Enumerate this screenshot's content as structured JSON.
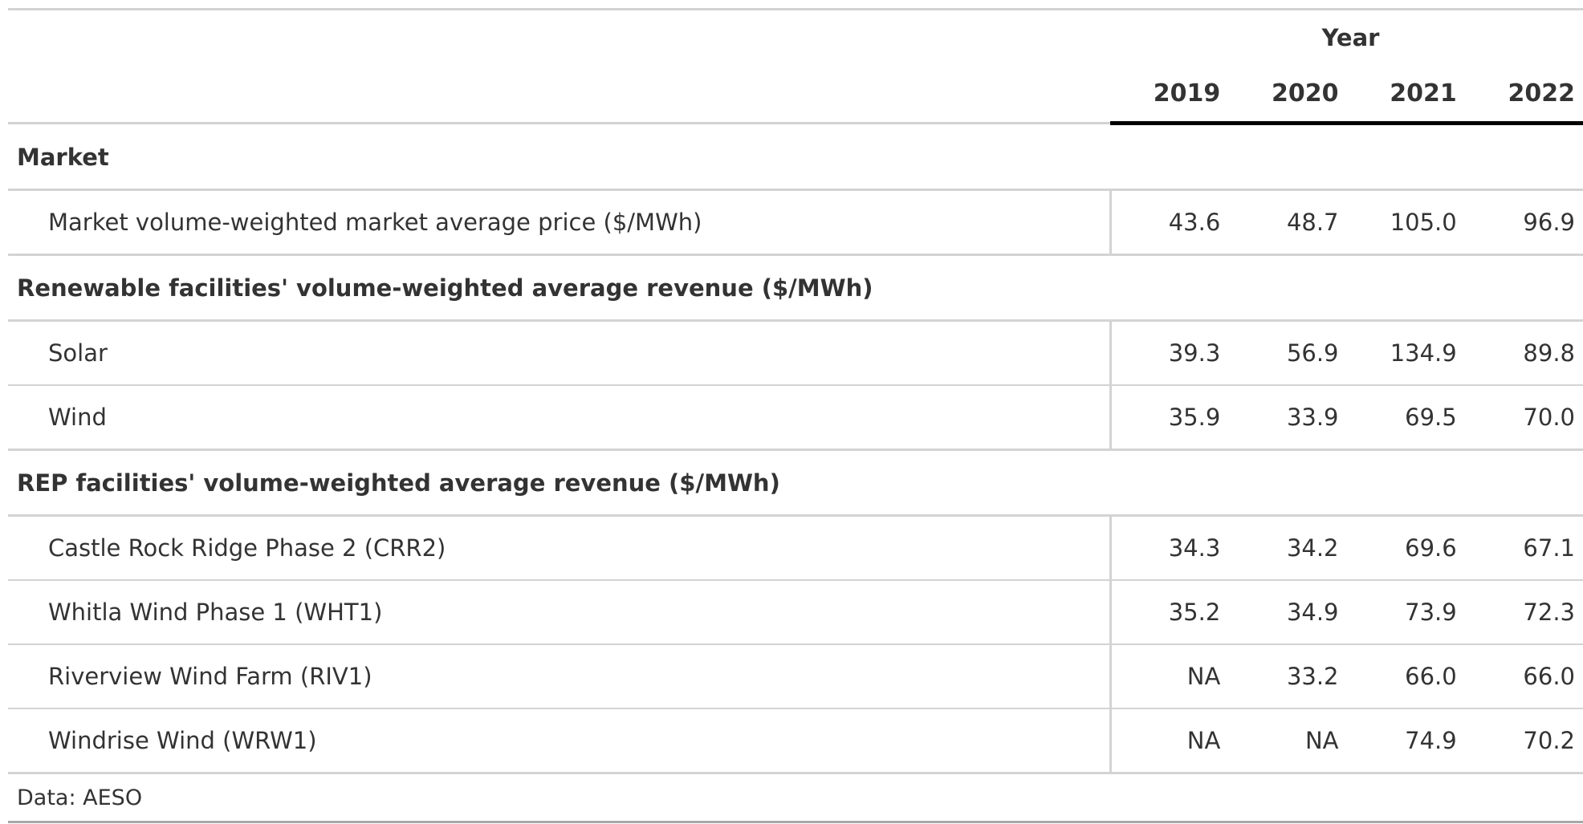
{
  "table": {
    "spanner_label": "Year",
    "years": [
      "2019",
      "2020",
      "2021",
      "2022"
    ],
    "groups": [
      {
        "title": "Market",
        "rows": [
          {
            "label": "Market volume-weighted market average price ($/MWh)",
            "values": [
              "43.6",
              "48.7",
              "105.0",
              "96.9"
            ]
          }
        ]
      },
      {
        "title": "Renewable facilities' volume-weighted average revenue ($/MWh)",
        "rows": [
          {
            "label": "Solar",
            "values": [
              "39.3",
              "56.9",
              "134.9",
              "89.8"
            ]
          },
          {
            "label": "Wind",
            "values": [
              "35.9",
              "33.9",
              "69.5",
              "70.0"
            ]
          }
        ]
      },
      {
        "title": "REP facilities' volume-weighted average revenue ($/MWh)",
        "rows": [
          {
            "label": "Castle Rock Ridge Phase 2 (CRR2)",
            "values": [
              "34.3",
              "34.2",
              "69.6",
              "67.1"
            ]
          },
          {
            "label": "Whitla Wind Phase 1 (WHT1)",
            "values": [
              "35.2",
              "34.9",
              "73.9",
              "72.3"
            ]
          },
          {
            "label": "Riverview Wind Farm (RIV1)",
            "values": [
              "NA",
              "33.2",
              "66.0",
              "66.0"
            ]
          },
          {
            "label": "Windrise Wind (WRW1)",
            "values": [
              "NA",
              "NA",
              "74.9",
              "70.2"
            ]
          }
        ]
      }
    ],
    "source_note": "Data: AESO"
  }
}
